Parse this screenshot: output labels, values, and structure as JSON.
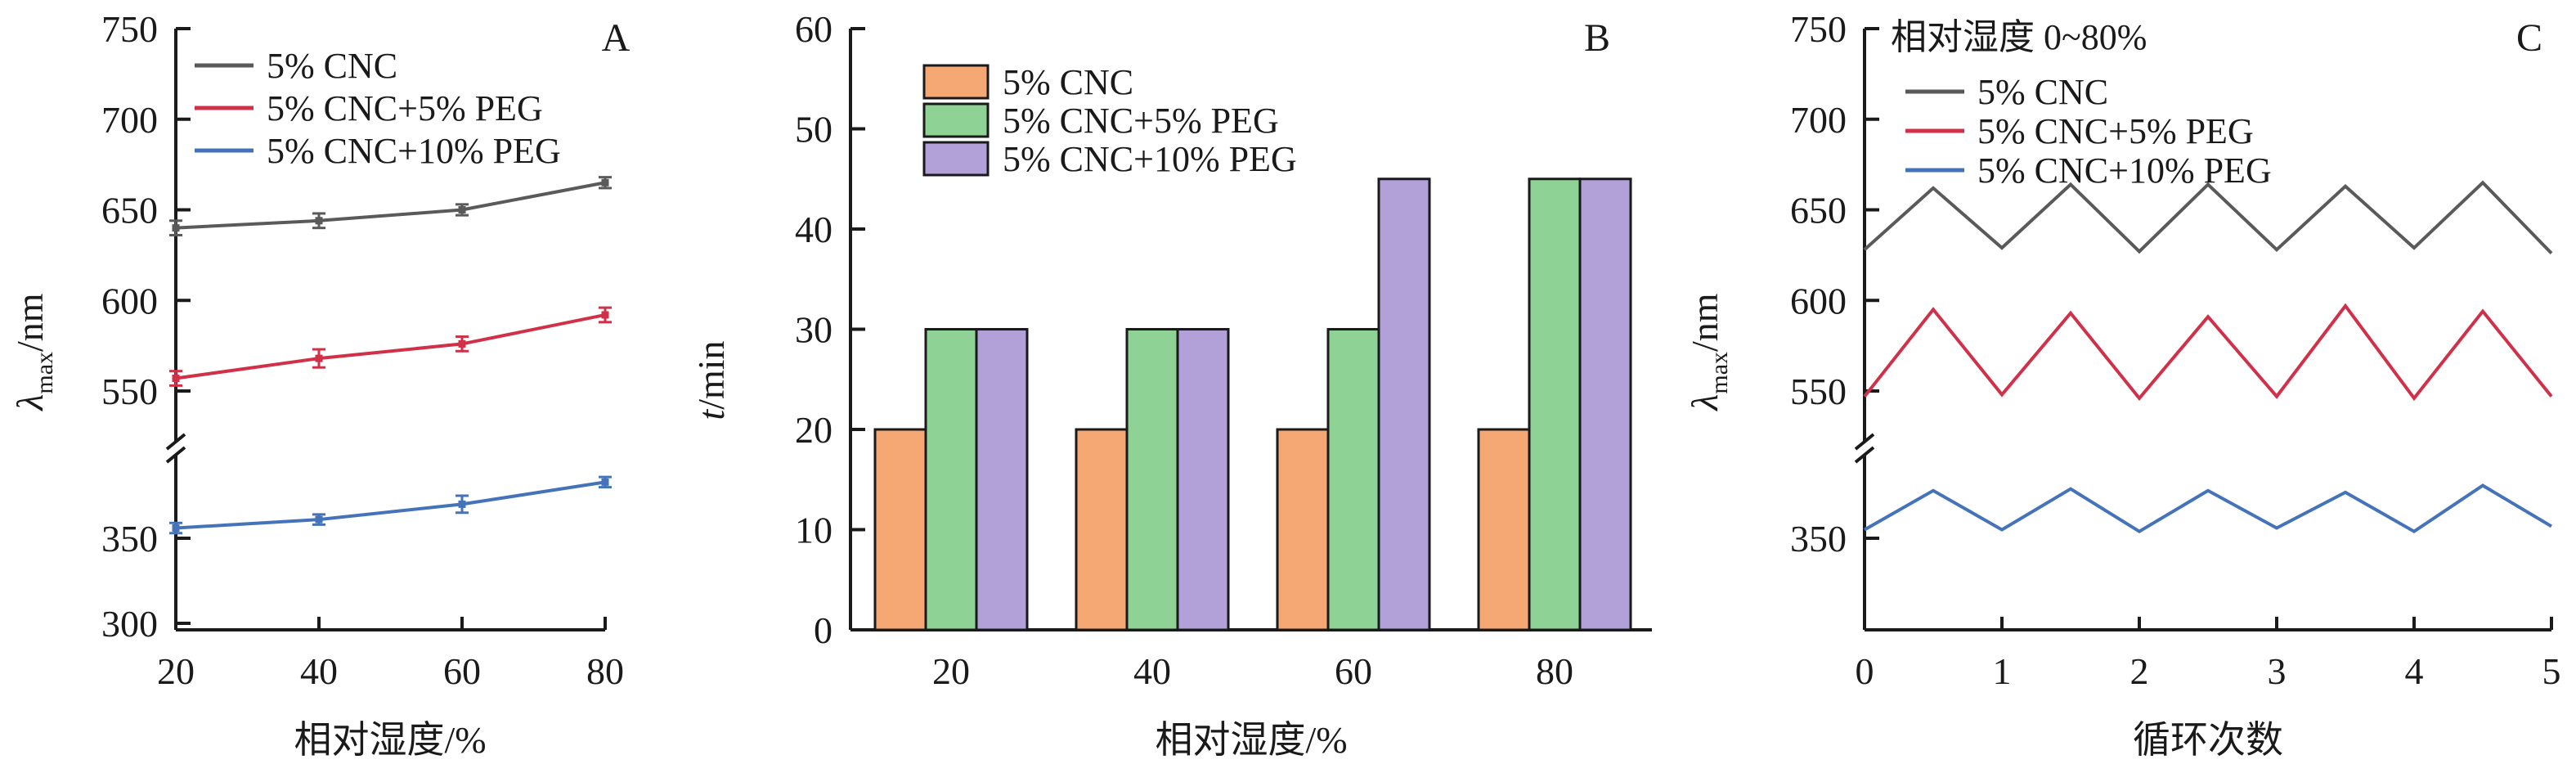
{
  "figure": {
    "panel_a": {
      "label": "A",
      "xlabel": "相对湿度/%",
      "ylabel": {
        "symbol": "λ",
        "sub": "max",
        "unit": "/nm"
      }
    },
    "panel_b": {
      "label": "B",
      "xlabel": "相对湿度/%",
      "ylabel": {
        "symbol": "t",
        "unit": "/min"
      }
    },
    "panel_c": {
      "label": "C",
      "title": "相对湿度 0~80%",
      "xlabel": "循环次数",
      "ylabel": {
        "symbol": "λ",
        "sub": "max",
        "unit": "/nm"
      }
    },
    "colors": {
      "axis": "#1a1a1a",
      "gray_line": "#5a5a5a",
      "red_line": "#d13148",
      "blue_line": "#4573b9",
      "orange_bar": "#f5a873",
      "green_bar": "#8fd296",
      "purple_bar": "#b2a0d8"
    }
  },
  "chart_data": [
    {
      "panel": "A",
      "type": "line",
      "title": "",
      "xlabel": "相对湿度/%",
      "ylabel": "λmax/nm",
      "x": [
        20,
        40,
        60,
        80
      ],
      "x_ticks": [
        20,
        40,
        60,
        80
      ],
      "x_range": [
        20,
        80
      ],
      "y_axis": {
        "broken": true,
        "top_ticks": [
          750,
          700,
          650,
          600,
          550
        ],
        "bottom_ticks": [
          350,
          300
        ],
        "top_range": [
          550,
          750
        ],
        "bottom_anchor": 350,
        "split_value": 450
      },
      "markers": true,
      "legend_position": "top-left-inside",
      "series": [
        {
          "name": "5% CNC",
          "color": "#5a5a5a",
          "values": [
            640,
            644,
            650,
            665
          ],
          "errors": [
            4,
            4,
            3,
            3
          ]
        },
        {
          "name": "5% CNC+5% PEG",
          "color": "#d13148",
          "values": [
            557,
            568,
            576,
            592
          ],
          "errors": [
            4,
            5,
            4,
            4
          ]
        },
        {
          "name": "5% CNC+10% PEG",
          "color": "#4573b9",
          "values": [
            356,
            361,
            370,
            383
          ],
          "errors": [
            3,
            3,
            5,
            3
          ]
        }
      ]
    },
    {
      "panel": "B",
      "type": "bar",
      "title": "",
      "xlabel": "相对湿度/%",
      "ylabel": "t/min",
      "categories": [
        20,
        40,
        60,
        80
      ],
      "ylim": [
        0,
        60
      ],
      "y_ticks": [
        0,
        10,
        20,
        30,
        40,
        50,
        60
      ],
      "legend_position": "top-left-inside",
      "series": [
        {
          "name": "5% CNC",
          "color": "#f5a873",
          "values": [
            20,
            20,
            20,
            20
          ]
        },
        {
          "name": "5% CNC+5% PEG",
          "color": "#8fd296",
          "values": [
            30,
            30,
            30,
            45
          ]
        },
        {
          "name": "5% CNC+10% PEG",
          "color": "#b2a0d8",
          "values": [
            30,
            30,
            45,
            45
          ]
        }
      ]
    },
    {
      "panel": "C",
      "type": "line",
      "title": "相对湿度 0~80%",
      "xlabel": "循环次数",
      "ylabel": "λmax/nm",
      "x": [
        0,
        0.5,
        1,
        1.5,
        2,
        2.5,
        3,
        3.5,
        4,
        4.5,
        5
      ],
      "x_ticks": [
        0,
        1,
        2,
        3,
        4,
        5
      ],
      "x_range": [
        0,
        5
      ],
      "y_axis": {
        "broken": true,
        "top_ticks": [
          750,
          700,
          650,
          600,
          550
        ],
        "bottom_ticks": [
          350
        ],
        "top_range": [
          550,
          750
        ],
        "bottom_anchor": 350,
        "split_value": 450
      },
      "markers": false,
      "legend_position": "top-left-inside",
      "series": [
        {
          "name": "5% CNC",
          "color": "#5a5a5a",
          "values": [
            628,
            662,
            629,
            664,
            627,
            664,
            628,
            663,
            629,
            665,
            626
          ]
        },
        {
          "name": "5% CNC+5% PEG",
          "color": "#d13148",
          "values": [
            547,
            595,
            548,
            593,
            546,
            591,
            547,
            597,
            546,
            594,
            547
          ]
        },
        {
          "name": "5% CNC+10% PEG",
          "color": "#4573b9",
          "values": [
            355,
            378,
            355,
            379,
            354,
            378,
            356,
            377,
            354,
            381,
            357
          ]
        }
      ]
    }
  ]
}
